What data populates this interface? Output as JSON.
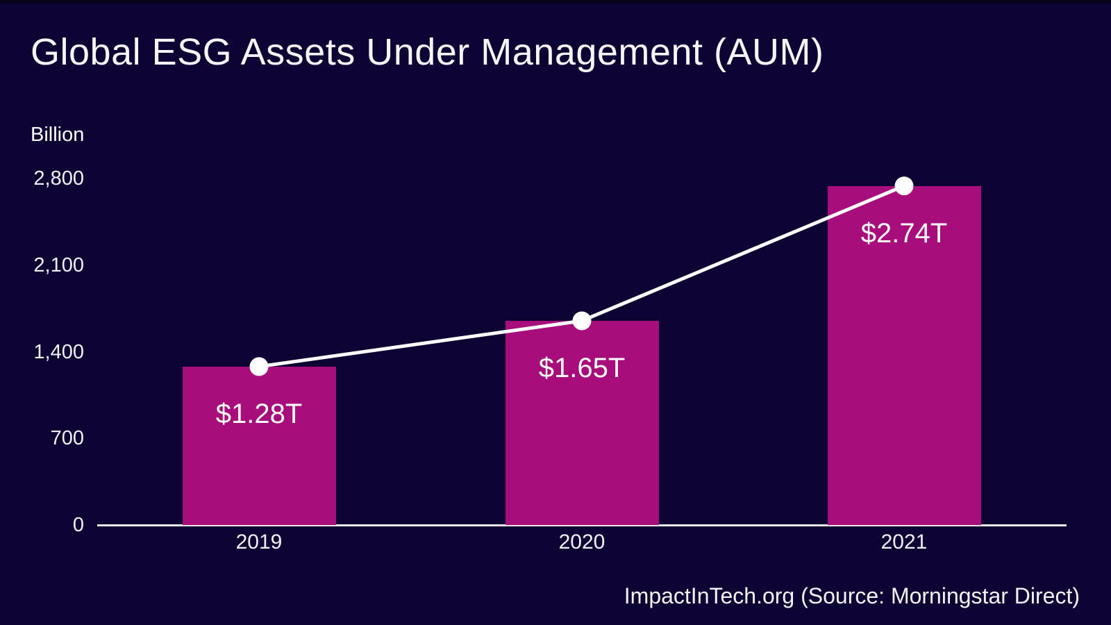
{
  "page": {
    "title": "Global ESG Assets Under Management (AUM)",
    "unit_label": "Billion",
    "source": "ImpactInTech.org (Source: Morningstar Direct)"
  },
  "chart_data": {
    "type": "bar",
    "title": "Global ESG Assets Under Management (AUM)",
    "ylabel": "Billion",
    "xlabel": "",
    "categories": [
      "2019",
      "2020",
      "2021"
    ],
    "values": [
      1280,
      1650,
      2740
    ],
    "value_labels": [
      "$1.28T",
      "$1.65T",
      "$2.74T"
    ],
    "y_ticks": [
      0,
      700,
      1400,
      2100,
      2800
    ],
    "ylim": [
      0,
      2800
    ],
    "overlay": "white line with round markers connecting bar tops",
    "legend": "none",
    "grid": false,
    "source": "ImpactInTech.org (Source: Morningstar Direct)",
    "colors": {
      "background": "#0d0433",
      "bar": "#a70e7c",
      "line": "#ffffff",
      "marker": "#ffffff",
      "text": "#f7f5fc",
      "axis": "#e9e7f0"
    }
  }
}
